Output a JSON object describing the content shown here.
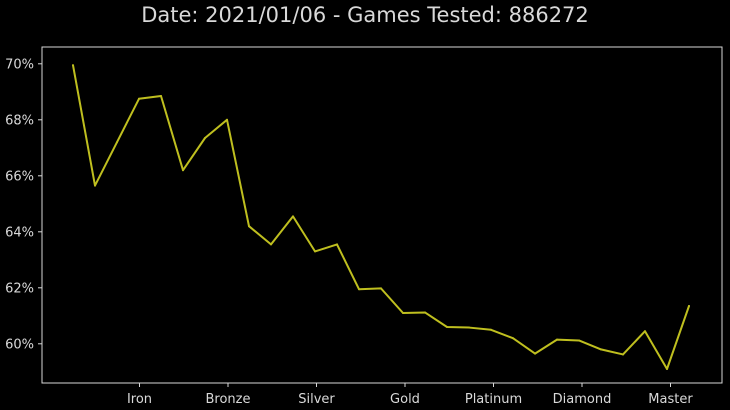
{
  "chart_data": {
    "type": "line",
    "title": "Date: 2021/01/06 - Games Tested: 886272",
    "xlabel": "",
    "ylabel": "",
    "x_ticks": [
      "Iron",
      "Bronze",
      "Silver",
      "Gold",
      "Platinum",
      "Diamond",
      "Master"
    ],
    "y_ticks": [
      "60%",
      "62%",
      "64%",
      "66%",
      "68%",
      "70%"
    ],
    "y_tick_values": [
      60,
      62,
      64,
      66,
      68,
      70
    ],
    "ylim": [
      58.6,
      70.6
    ],
    "grid": false,
    "colors": {
      "background": "#000000",
      "axes_frame": "#d9d9d9",
      "text": "#d9d9d9",
      "series": "#bfbf1f"
    },
    "series": [
      {
        "values": [
          69.95,
          65.65,
          67.2,
          68.75,
          68.85,
          66.2,
          67.35,
          68.0,
          64.2,
          63.55,
          64.55,
          63.3,
          63.55,
          61.95,
          61.98,
          61.1,
          61.12,
          60.6,
          60.58,
          60.5,
          60.2,
          59.65,
          60.15,
          60.12,
          59.8,
          59.62,
          60.45,
          59.1,
          61.35
        ]
      }
    ]
  }
}
